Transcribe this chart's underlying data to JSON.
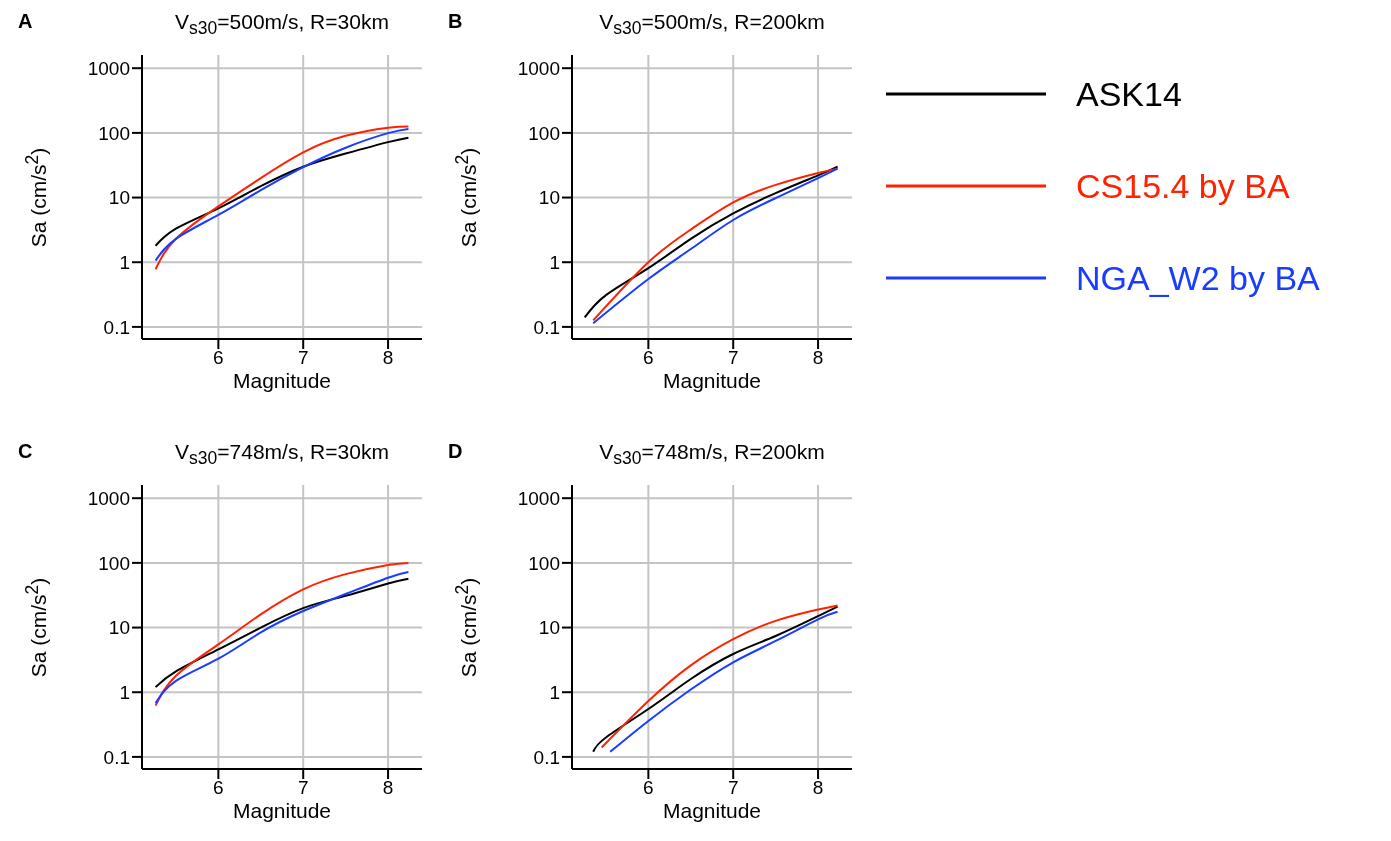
{
  "chart_data": [
    {
      "type": "line",
      "title": "V$_{s30}$=500m/s, R=30km",
      "xlabel": "Magnitude",
      "ylabel": "Sa (cm/s$^{2}$)",
      "annotations": [
        "A"
      ],
      "log": "y",
      "grid": true,
      "legend": false,
      "xlim": [
        5.1,
        8.4
      ],
      "xticks": [
        6,
        7,
        8
      ],
      "ylim": [
        0.065,
        1600
      ],
      "yticks": [
        0.1,
        1,
        10,
        100,
        1000
      ],
      "series": [
        {
          "color": "#000000",
          "x": [
            5.26,
            5.5,
            6,
            6.5,
            7,
            7.5,
            8,
            8.24
          ],
          "values": [
            1.8,
            3.3,
            6.8,
            15,
            30,
            48,
            72,
            84
          ]
        },
        {
          "color": "#ff2200",
          "x": [
            5.26,
            5.5,
            6,
            6.5,
            7,
            7.5,
            8,
            8.24
          ],
          "values": [
            0.78,
            2.3,
            7.3,
            20,
            50,
            90,
            120,
            126
          ]
        },
        {
          "color": "#1a3cff",
          "x": [
            5.26,
            5.5,
            6,
            6.5,
            7,
            7.5,
            8,
            8.24
          ],
          "values": [
            1.06,
            2.3,
            5.4,
            13,
            29.5,
            59,
            99,
            115
          ]
        }
      ]
    },
    {
      "type": "line",
      "title": "V$_{s30}$=500m/s, R=200km",
      "xlabel": "Magnitude",
      "ylabel": "Sa (cm/s$^{2}$)",
      "annotations": [
        "B"
      ],
      "log": "y",
      "grid": true,
      "legend": "right",
      "xlim": [
        5.1,
        8.4
      ],
      "xticks": [
        6,
        7,
        8
      ],
      "ylim": [
        0.065,
        1600
      ],
      "yticks": [
        0.1,
        1,
        10,
        100,
        1000
      ],
      "series": [
        {
          "name": "ASK14",
          "color": "#000000",
          "x": [
            5.25,
            5.5,
            6,
            6.5,
            7,
            7.5,
            8,
            8.23
          ],
          "values": [
            0.14,
            0.31,
            0.81,
            2.3,
            5.7,
            11.7,
            22,
            30
          ]
        },
        {
          "name": "CS15.4 by BA",
          "color": "#ff2200",
          "x": [
            5.35,
            6,
            6.5,
            7,
            7.5,
            8,
            8.23
          ],
          "values": [
            0.126,
            1.0,
            3.2,
            8.4,
            15.7,
            24,
            28
          ]
        },
        {
          "name": "NGA_W2 by BA",
          "color": "#1a3cff",
          "x": [
            5.35,
            6,
            6.5,
            7,
            7.5,
            8,
            8.23
          ],
          "values": [
            0.114,
            0.55,
            1.6,
            4.5,
            9.8,
            20,
            28
          ]
        }
      ]
    },
    {
      "type": "line",
      "title": "V$_{s30}$=748m/s, R=30km",
      "xlabel": "Magnitude",
      "ylabel": "Sa (cm/s$^{2}$)",
      "annotations": [
        "C"
      ],
      "log": "y",
      "grid": true,
      "legend": false,
      "xlim": [
        5.1,
        8.4
      ],
      "xticks": [
        6,
        7,
        8
      ],
      "ylim": [
        0.065,
        1600
      ],
      "yticks": [
        0.1,
        1,
        10,
        100,
        1000
      ],
      "series": [
        {
          "color": "#000000",
          "x": [
            5.26,
            5.5,
            6,
            6.5,
            7,
            7.5,
            8,
            8.24
          ],
          "values": [
            1.2,
            2.1,
            4.6,
            10,
            20,
            31,
            48,
            57
          ]
        },
        {
          "color": "#ff2200",
          "x": [
            5.26,
            5.5,
            6,
            6.5,
            7,
            7.5,
            8,
            8.24
          ],
          "values": [
            0.62,
            1.8,
            5.5,
            16,
            39,
            67,
            93,
            100
          ]
        },
        {
          "color": "#1a3cff",
          "x": [
            5.26,
            5.5,
            6,
            6.5,
            7,
            7.5,
            8,
            8.24
          ],
          "values": [
            0.68,
            1.5,
            3.3,
            8.4,
            18,
            33,
            59,
            72
          ]
        }
      ]
    },
    {
      "type": "line",
      "title": "V$_{s30}$=748m/s, R=200km",
      "xlabel": "Magnitude",
      "ylabel": "Sa (cm/s$^{2}$)",
      "annotations": [
        "D"
      ],
      "log": "y",
      "grid": true,
      "legend": false,
      "xlim": [
        5.1,
        8.4
      ],
      "xticks": [
        6,
        7,
        8
      ],
      "ylim": [
        0.065,
        1600
      ],
      "yticks": [
        0.1,
        1,
        10,
        100,
        1000
      ],
      "series": [
        {
          "color": "#000000",
          "x": [
            5.35,
            5.5,
            6,
            6.5,
            7,
            7.5,
            8,
            8.23
          ],
          "values": [
            0.12,
            0.2,
            0.55,
            1.6,
            3.9,
            7.4,
            15,
            21
          ]
        },
        {
          "color": "#ff2200",
          "x": [
            5.45,
            6,
            6.5,
            7,
            7.5,
            8,
            8.23
          ],
          "values": [
            0.14,
            0.73,
            2.6,
            6.6,
            12.7,
            19,
            22
          ]
        },
        {
          "color": "#1a3cff",
          "x": [
            5.55,
            6,
            6.5,
            7,
            7.5,
            8,
            8.23
          ],
          "values": [
            0.12,
            0.36,
            1.1,
            2.9,
            6.2,
            13.4,
            17.5
          ]
        }
      ]
    }
  ]
}
